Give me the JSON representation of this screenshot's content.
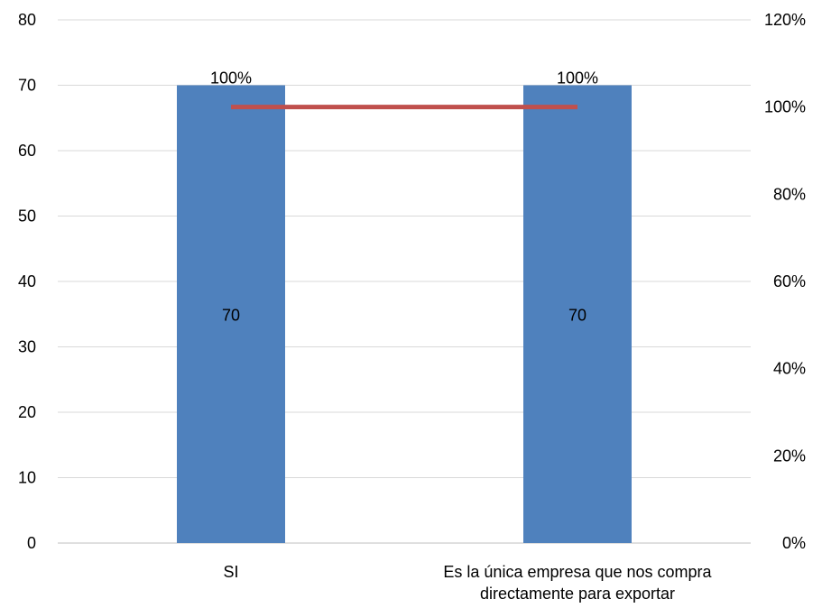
{
  "chart_data": {
    "type": "bar",
    "categories": [
      [
        "SI"
      ],
      [
        "Es la única empresa que nos compra",
        "directamente para exportar"
      ]
    ],
    "series": [
      {
        "values": [
          70,
          70
        ],
        "data_labels": [
          "70",
          "70"
        ],
        "color": "#4f81bd",
        "axis": "primary",
        "kind": "bar"
      },
      {
        "values": [
          1.0,
          1.0
        ],
        "data_labels": [
          "100%",
          "100%"
        ],
        "color": "#c0504d",
        "axis": "secondary",
        "kind": "line"
      }
    ],
    "y_left": {
      "min": 0,
      "max": 80,
      "ticks": [
        "0",
        "10",
        "20",
        "30",
        "40",
        "50",
        "60",
        "70",
        "80"
      ]
    },
    "y_right": {
      "min": 0,
      "max": 1.2,
      "ticks": [
        "0%",
        "20%",
        "40%",
        "60%",
        "80%",
        "100%",
        "120%"
      ]
    },
    "grid": true,
    "colors": {
      "bar": "#4f81bd",
      "line": "#c0504d",
      "grid": "#d9d9d9",
      "axis": "#bfbfbf"
    }
  }
}
